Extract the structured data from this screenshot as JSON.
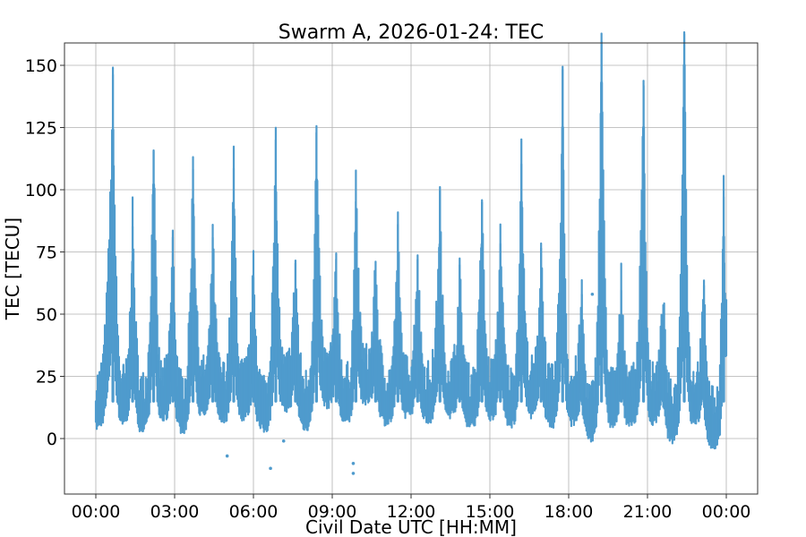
{
  "chart_data": {
    "type": "scatter",
    "title": "Swarm A, 2026-01-24: TEC",
    "xlabel": "Civil Date UTC [HH:MM]",
    "ylabel": "TEC [TECU]",
    "xlim_hours": [
      -1.18,
      25.1
    ],
    "ylim": [
      -24,
      159
    ],
    "grid": true,
    "legend": null,
    "marker_color": "#4f9bcd",
    "x_ticks": [
      {
        "hour": 0,
        "label": "00:00"
      },
      {
        "hour": 3,
        "label": "03:00"
      },
      {
        "hour": 6,
        "label": "06:00"
      },
      {
        "hour": 9,
        "label": "09:00"
      },
      {
        "hour": 12,
        "label": "12:00"
      },
      {
        "hour": 15,
        "label": "15:00"
      },
      {
        "hour": 18,
        "label": "18:00"
      },
      {
        "hour": 21,
        "label": "21:00"
      },
      {
        "hour": 24,
        "label": "00:00"
      }
    ],
    "y_ticks": [
      0,
      25,
      50,
      75,
      100,
      125,
      150
    ],
    "series": [
      {
        "name": "TEC",
        "description": "Dense scatter of TEC along orbit; approximate per-orbit peaks and troughs",
        "peaks": [
          {
            "hour": 0.65,
            "tec": 124
          },
          {
            "hour": 1.4,
            "tec": 71
          },
          {
            "hour": 2.2,
            "tec": 102
          },
          {
            "hour": 2.93,
            "tec": 61
          },
          {
            "hour": 3.7,
            "tec": 94
          },
          {
            "hour": 4.45,
            "tec": 64
          },
          {
            "hour": 5.25,
            "tec": 92
          },
          {
            "hour": 6.0,
            "tec": 50
          },
          {
            "hour": 6.85,
            "tec": 99
          },
          {
            "hour": 7.6,
            "tec": 52
          },
          {
            "hour": 8.4,
            "tec": 104
          },
          {
            "hour": 9.15,
            "tec": 52
          },
          {
            "hour": 9.9,
            "tec": 83
          },
          {
            "hour": 10.65,
            "tec": 52
          },
          {
            "hour": 11.5,
            "tec": 66
          },
          {
            "hour": 12.25,
            "tec": 56
          },
          {
            "hour": 13.1,
            "tec": 78
          },
          {
            "hour": 13.85,
            "tec": 48
          },
          {
            "hour": 14.7,
            "tec": 78
          },
          {
            "hour": 15.4,
            "tec": 65
          },
          {
            "hour": 16.2,
            "tec": 95
          },
          {
            "hour": 16.95,
            "tec": 60
          },
          {
            "hour": 17.77,
            "tec": 125
          },
          {
            "hour": 18.5,
            "tec": 40
          },
          {
            "hour": 19.25,
            "tec": 143
          },
          {
            "hour": 20.0,
            "tec": 45
          },
          {
            "hour": 20.85,
            "tec": 125
          },
          {
            "hour": 21.6,
            "tec": 40
          },
          {
            "hour": 22.4,
            "tec": 150
          },
          {
            "hour": 23.15,
            "tec": 40
          },
          {
            "hour": 23.9,
            "tec": 81
          }
        ],
        "troughs": [
          {
            "hour": 0.0,
            "tec": 3
          },
          {
            "hour": 1.05,
            "tec": 5
          },
          {
            "hour": 1.8,
            "tec": 2
          },
          {
            "hour": 2.55,
            "tec": 6
          },
          {
            "hour": 3.3,
            "tec": 2
          },
          {
            "hour": 4.1,
            "tec": 8
          },
          {
            "hour": 4.85,
            "tec": 6
          },
          {
            "hour": 5.6,
            "tec": 7
          },
          {
            "hour": 6.4,
            "tec": 2
          },
          {
            "hour": 7.2,
            "tec": 10
          },
          {
            "hour": 8.0,
            "tec": 3
          },
          {
            "hour": 8.8,
            "tec": 12
          },
          {
            "hour": 9.55,
            "tec": 5
          },
          {
            "hour": 10.3,
            "tec": 13
          },
          {
            "hour": 11.1,
            "tec": 5
          },
          {
            "hour": 11.85,
            "tec": 8
          },
          {
            "hour": 12.65,
            "tec": 6
          },
          {
            "hour": 13.45,
            "tec": 8
          },
          {
            "hour": 14.3,
            "tec": 4
          },
          {
            "hour": 15.05,
            "tec": 7
          },
          {
            "hour": 15.8,
            "tec": 4
          },
          {
            "hour": 16.6,
            "tec": 8
          },
          {
            "hour": 17.35,
            "tec": 4
          },
          {
            "hour": 18.1,
            "tec": 5
          },
          {
            "hour": 18.85,
            "tec": -2
          },
          {
            "hour": 19.65,
            "tec": 4
          },
          {
            "hour": 20.4,
            "tec": 4
          },
          {
            "hour": 21.2,
            "tec": 5
          },
          {
            "hour": 21.95,
            "tec": -2
          },
          {
            "hour": 22.75,
            "tec": 5
          },
          {
            "hour": 23.55,
            "tec": -5
          },
          {
            "hour": 24.0,
            "tec": 30
          }
        ],
        "outliers": [
          {
            "hour": 5.0,
            "tec": -7
          },
          {
            "hour": 6.65,
            "tec": -12
          },
          {
            "hour": 7.15,
            "tec": -1
          },
          {
            "hour": 9.8,
            "tec": -10
          },
          {
            "hour": 9.8,
            "tec": -14
          },
          {
            "hour": 18.9,
            "tec": 58
          }
        ]
      }
    ]
  }
}
